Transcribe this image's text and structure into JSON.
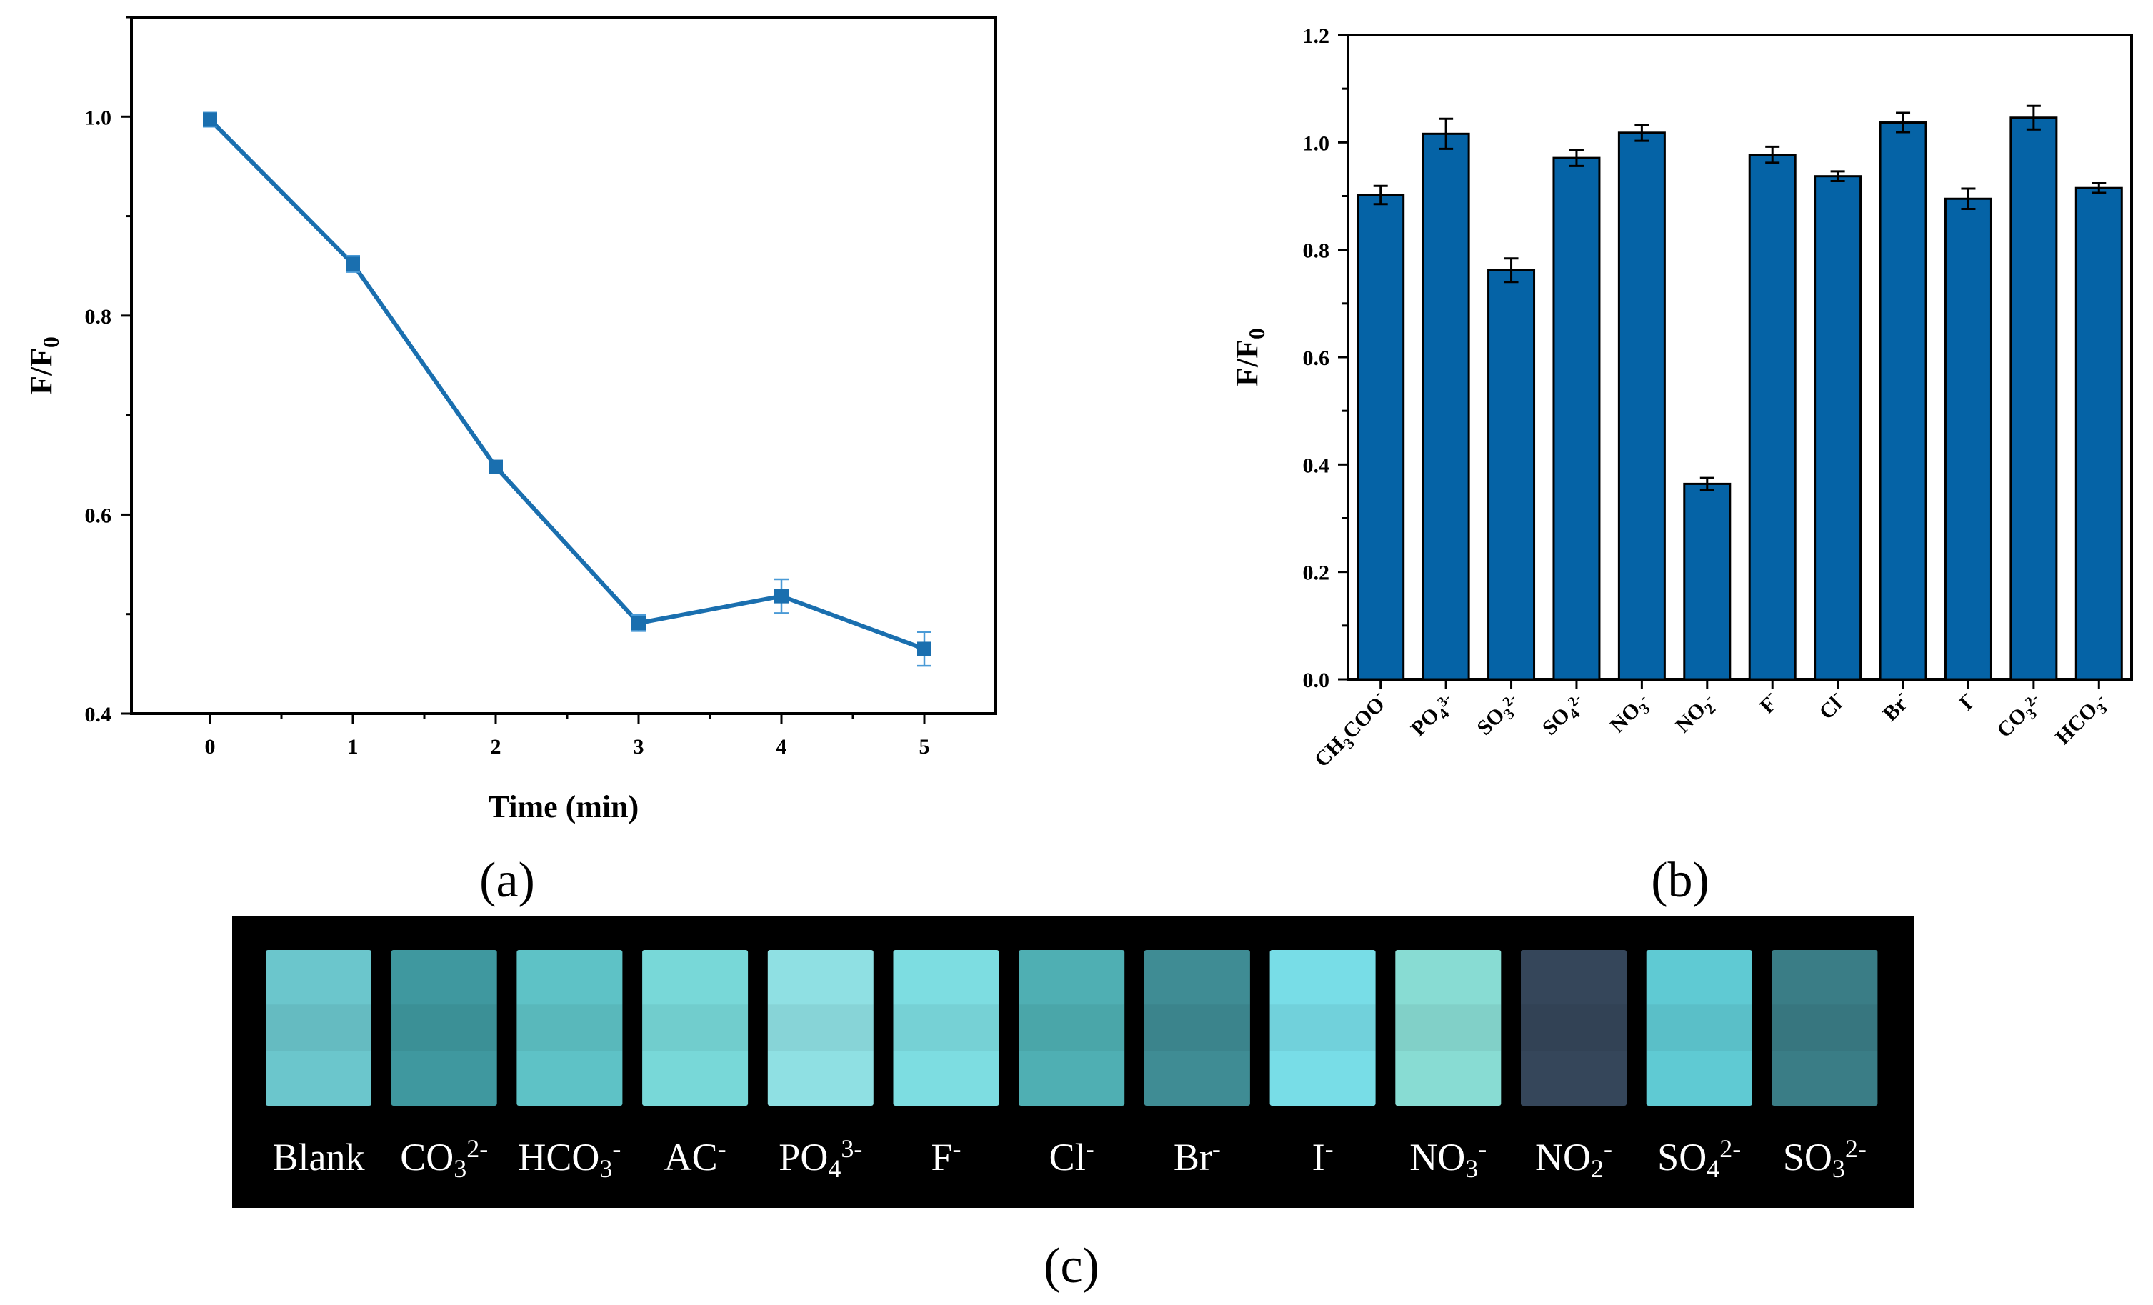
{
  "chart_data": [
    {
      "id": "a",
      "type": "line",
      "panel_label": "(a)",
      "xlabel": "Time (min)",
      "ylabel": "F/F",
      "ylabel_sub": "0",
      "xlim": [
        -0.55,
        5.5
      ],
      "ylim": [
        0.4,
        1.1
      ],
      "xticks": [
        "0",
        "1",
        "2",
        "3",
        "4",
        "5"
      ],
      "yticks": [
        "0.4",
        "0.6",
        "0.8",
        "1.0"
      ],
      "series": [
        {
          "name": "F/F0",
          "color": "#1a6faf",
          "x": [
            0,
            1,
            2,
            3,
            4,
            5
          ],
          "y": [
            0.997,
            0.852,
            0.648,
            0.491,
            0.518,
            0.465
          ],
          "err": [
            0.007,
            0.008,
            0.006,
            0.008,
            0.017,
            0.017
          ]
        }
      ]
    },
    {
      "id": "b",
      "type": "bar",
      "panel_label": "(b)",
      "xlabel": "",
      "ylabel": "F/F",
      "ylabel_sub": "0",
      "ylim": [
        0.0,
        1.2
      ],
      "yticks": [
        "0.0",
        "0.2",
        "0.4",
        "0.6",
        "0.8",
        "1.0",
        "1.2"
      ],
      "bar_color": "#0563a6",
      "categories": [
        {
          "base": "CH",
          "sub": "3",
          "tail": "COO",
          "sup": "-"
        },
        {
          "base": "PO",
          "sub": "4",
          "tail": "",
          "sup": "3-"
        },
        {
          "base": "SO",
          "sub": "3",
          "tail": "",
          "sup": "2-"
        },
        {
          "base": "SO",
          "sub": "4",
          "tail": "",
          "sup": "2-"
        },
        {
          "base": "NO",
          "sub": "3",
          "tail": "",
          "sup": "-"
        },
        {
          "base": "NO",
          "sub": "2",
          "tail": "",
          "sup": "-"
        },
        {
          "base": "F",
          "sub": "",
          "tail": "",
          "sup": "-"
        },
        {
          "base": "Cl",
          "sub": "",
          "tail": "",
          "sup": "-"
        },
        {
          "base": "Br",
          "sub": "",
          "tail": "",
          "sup": "-"
        },
        {
          "base": "I",
          "sub": "",
          "tail": "",
          "sup": "-"
        },
        {
          "base": "CO",
          "sub": "3",
          "tail": "",
          "sup": "2-"
        },
        {
          "base": "HCO",
          "sub": "3",
          "tail": "",
          "sup": "-"
        }
      ],
      "values": [
        0.902,
        1.016,
        0.762,
        0.971,
        1.018,
        0.364,
        0.977,
        0.937,
        1.037,
        0.895,
        1.046,
        0.915
      ],
      "err": [
        0.017,
        0.028,
        0.022,
        0.015,
        0.015,
        0.011,
        0.015,
        0.009,
        0.018,
        0.019,
        0.022,
        0.009
      ]
    }
  ],
  "photo": {
    "panel_label": "(c)",
    "swatches": [
      {
        "label": "Blank",
        "sup": "",
        "sub": "",
        "color": "#6bc6cc"
      },
      {
        "label": "CO",
        "sub": "3",
        "sup": "2-",
        "color": "#3f989f"
      },
      {
        "label": "HCO",
        "sub": "3",
        "sup": "-",
        "color": "#5ec2c6"
      },
      {
        "label": "AC",
        "sub": "",
        "sup": "-",
        "color": "#78d8d8"
      },
      {
        "label": "PO",
        "sub": "4",
        "sup": "3-",
        "color": "#8fe0e3"
      },
      {
        "label": "F",
        "sub": "",
        "sup": "-",
        "color": "#7ddde1"
      },
      {
        "label": "Cl",
        "sub": "",
        "sup": "-",
        "color": "#4fafb3"
      },
      {
        "label": "Br",
        "sub": "",
        "sup": "-",
        "color": "#3f8c94"
      },
      {
        "label": "I",
        "sub": "",
        "sup": "-",
        "color": "#78dde7"
      },
      {
        "label": "NO",
        "sub": "3",
        "sup": "-",
        "color": "#88dcd3"
      },
      {
        "label": "NO",
        "sub": "2",
        "sup": "-",
        "color": "#35465a"
      },
      {
        "label": "SO",
        "sub": "4",
        "sup": "2-",
        "color": "#5fcad3"
      },
      {
        "label": "SO",
        "sub": "3",
        "sup": "2-",
        "color": "#3a7d86"
      }
    ]
  }
}
